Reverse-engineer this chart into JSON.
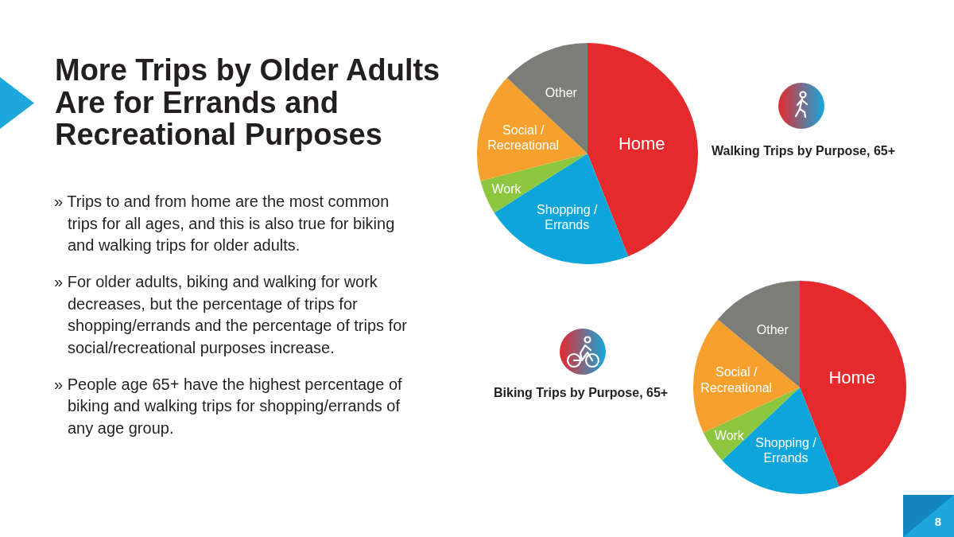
{
  "chart_data": [
    {
      "type": "other",
      "title": "More Trips by Older Adults Are for Errands and Recreational Purposes",
      "annotations": [
        "» Trips to and from home are the most common trips for all ages, and this is also true for biking and walking trips for older adults.",
        "» For older adults, biking and walking for work decreases, but the percentage of trips for shopping/errands and the percentage of trips for social/recreational purposes increase.",
        "» People age 65+ have the highest percentage of biking and walking trips for shopping/errands of any age group.",
        "8"
      ]
    },
    {
      "type": "pie",
      "title": "Walking Trips by Purpose, 65+",
      "categories": [
        "Home",
        "Shopping / Errands",
        "Work",
        "Social / Recreational",
        "Other"
      ],
      "values": [
        44,
        22,
        5,
        16,
        13
      ],
      "colors": [
        "#e52a2e",
        "#0ea6da",
        "#8dc63f",
        "#f6a02d",
        "#7d7d78"
      ]
    },
    {
      "type": "pie",
      "title": "Biking Trips by Purpose, 65+",
      "categories": [
        "Home",
        "Shopping / Errands",
        "Work",
        "Social / Recreational",
        "Other"
      ],
      "values": [
        44,
        19,
        5,
        18,
        14
      ],
      "colors": [
        "#e52a2e",
        "#0ea6da",
        "#8dc63f",
        "#f6a02d",
        "#7d7d78"
      ]
    }
  ]
}
